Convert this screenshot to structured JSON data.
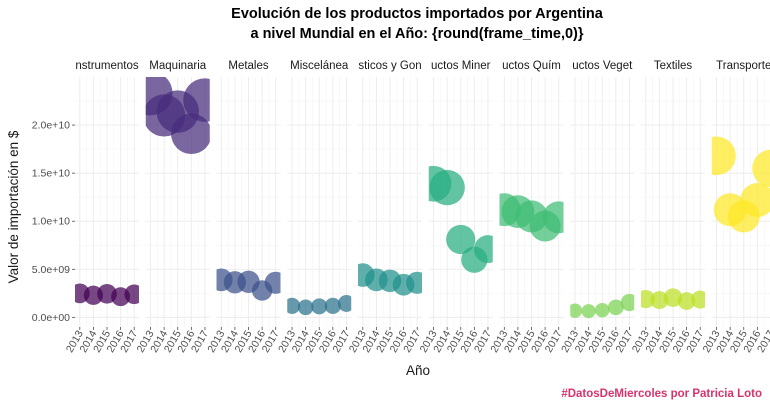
{
  "chart_data": {
    "type": "scatter",
    "title_line1": "Evolución de los productos importados por Argentina",
    "title_line2": "a nivel Mundial en el Año: {round(frame_time,0)}",
    "xlabel": "Año",
    "ylabel": "Valor de importación en $",
    "caption": "#DatosDeMiercoles por Patricia Loto",
    "ylim": [
      -1000000000,
      25000000000
    ],
    "yticks": [
      {
        "value": 0,
        "label": "0.0e+00"
      },
      {
        "value": 5000000000,
        "label": "5.0e+09"
      },
      {
        "value": 10000000000,
        "label": "1.0e+10"
      },
      {
        "value": 15000000000,
        "label": "1.5e+10"
      },
      {
        "value": 20000000000,
        "label": "2.0e+10"
      }
    ],
    "xticks": [
      "2013",
      "2014",
      "2015",
      "2016",
      "2017"
    ],
    "grid": true,
    "legend": "none",
    "panels": [
      {
        "label": "nstrumentos",
        "color": "#440154",
        "points": [
          {
            "year": 2013,
            "value": 2500000000
          },
          {
            "year": 2014,
            "value": 2300000000
          },
          {
            "year": 2015,
            "value": 2450000000
          },
          {
            "year": 2016,
            "value": 2150000000
          },
          {
            "year": 2017,
            "value": 2400000000
          }
        ]
      },
      {
        "label": "Maquinaria",
        "color": "#472d7b",
        "points": [
          {
            "year": 2013,
            "value": 23300000000
          },
          {
            "year": 2014,
            "value": 21000000000
          },
          {
            "year": 2015,
            "value": 21400000000
          },
          {
            "year": 2016,
            "value": 19100000000
          },
          {
            "year": 2017,
            "value": 22600000000
          }
        ]
      },
      {
        "label": "Metales",
        "color": "#3b528b",
        "points": [
          {
            "year": 2013,
            "value": 3900000000
          },
          {
            "year": 2014,
            "value": 3650000000
          },
          {
            "year": 2015,
            "value": 3700000000
          },
          {
            "year": 2016,
            "value": 2800000000
          },
          {
            "year": 2017,
            "value": 3600000000
          }
        ]
      },
      {
        "label": "Miscelánea",
        "color": "#2c728e",
        "points": [
          {
            "year": 2013,
            "value": 1200000000
          },
          {
            "year": 2014,
            "value": 1050000000
          },
          {
            "year": 2015,
            "value": 1150000000
          },
          {
            "year": 2016,
            "value": 1200000000
          },
          {
            "year": 2017,
            "value": 1450000000
          }
        ]
      },
      {
        "label": "sticos y Gon",
        "color": "#21908c",
        "points": [
          {
            "year": 2013,
            "value": 4400000000
          },
          {
            "year": 2014,
            "value": 3900000000
          },
          {
            "year": 2015,
            "value": 3800000000
          },
          {
            "year": 2016,
            "value": 3400000000
          },
          {
            "year": 2017,
            "value": 3600000000
          }
        ]
      },
      {
        "label": "uctos Miner",
        "color": "#27ad81",
        "points": [
          {
            "year": 2013,
            "value": 13900000000
          },
          {
            "year": 2014,
            "value": 13500000000
          },
          {
            "year": 2015,
            "value": 8100000000
          },
          {
            "year": 2016,
            "value": 6000000000
          },
          {
            "year": 2017,
            "value": 7100000000
          }
        ]
      },
      {
        "label": "uctos Quím",
        "color": "#3ebc73",
        "points": [
          {
            "year": 2013,
            "value": 11200000000
          },
          {
            "year": 2014,
            "value": 11000000000
          },
          {
            "year": 2015,
            "value": 10500000000
          },
          {
            "year": 2016,
            "value": 9500000000
          },
          {
            "year": 2017,
            "value": 10400000000
          }
        ]
      },
      {
        "label": "uctos Veget",
        "color": "#7ad151",
        "points": [
          {
            "year": 2013,
            "value": 700000000
          },
          {
            "year": 2014,
            "value": 650000000
          },
          {
            "year": 2015,
            "value": 750000000
          },
          {
            "year": 2016,
            "value": 1050000000
          },
          {
            "year": 2017,
            "value": 1550000000
          }
        ]
      },
      {
        "label": "Textiles",
        "color": "#bddf26",
        "points": [
          {
            "year": 2013,
            "value": 1900000000
          },
          {
            "year": 2014,
            "value": 1800000000
          },
          {
            "year": 2015,
            "value": 2050000000
          },
          {
            "year": 2016,
            "value": 1700000000
          },
          {
            "year": 2017,
            "value": 1850000000
          }
        ]
      },
      {
        "label": "Transporte",
        "color": "#fde725",
        "points": [
          {
            "year": 2013,
            "value": 16800000000
          },
          {
            "year": 2014,
            "value": 11200000000
          },
          {
            "year": 2015,
            "value": 10500000000
          },
          {
            "year": 2016,
            "value": 12200000000
          },
          {
            "year": 2017,
            "value": 15500000000
          }
        ]
      }
    ]
  }
}
